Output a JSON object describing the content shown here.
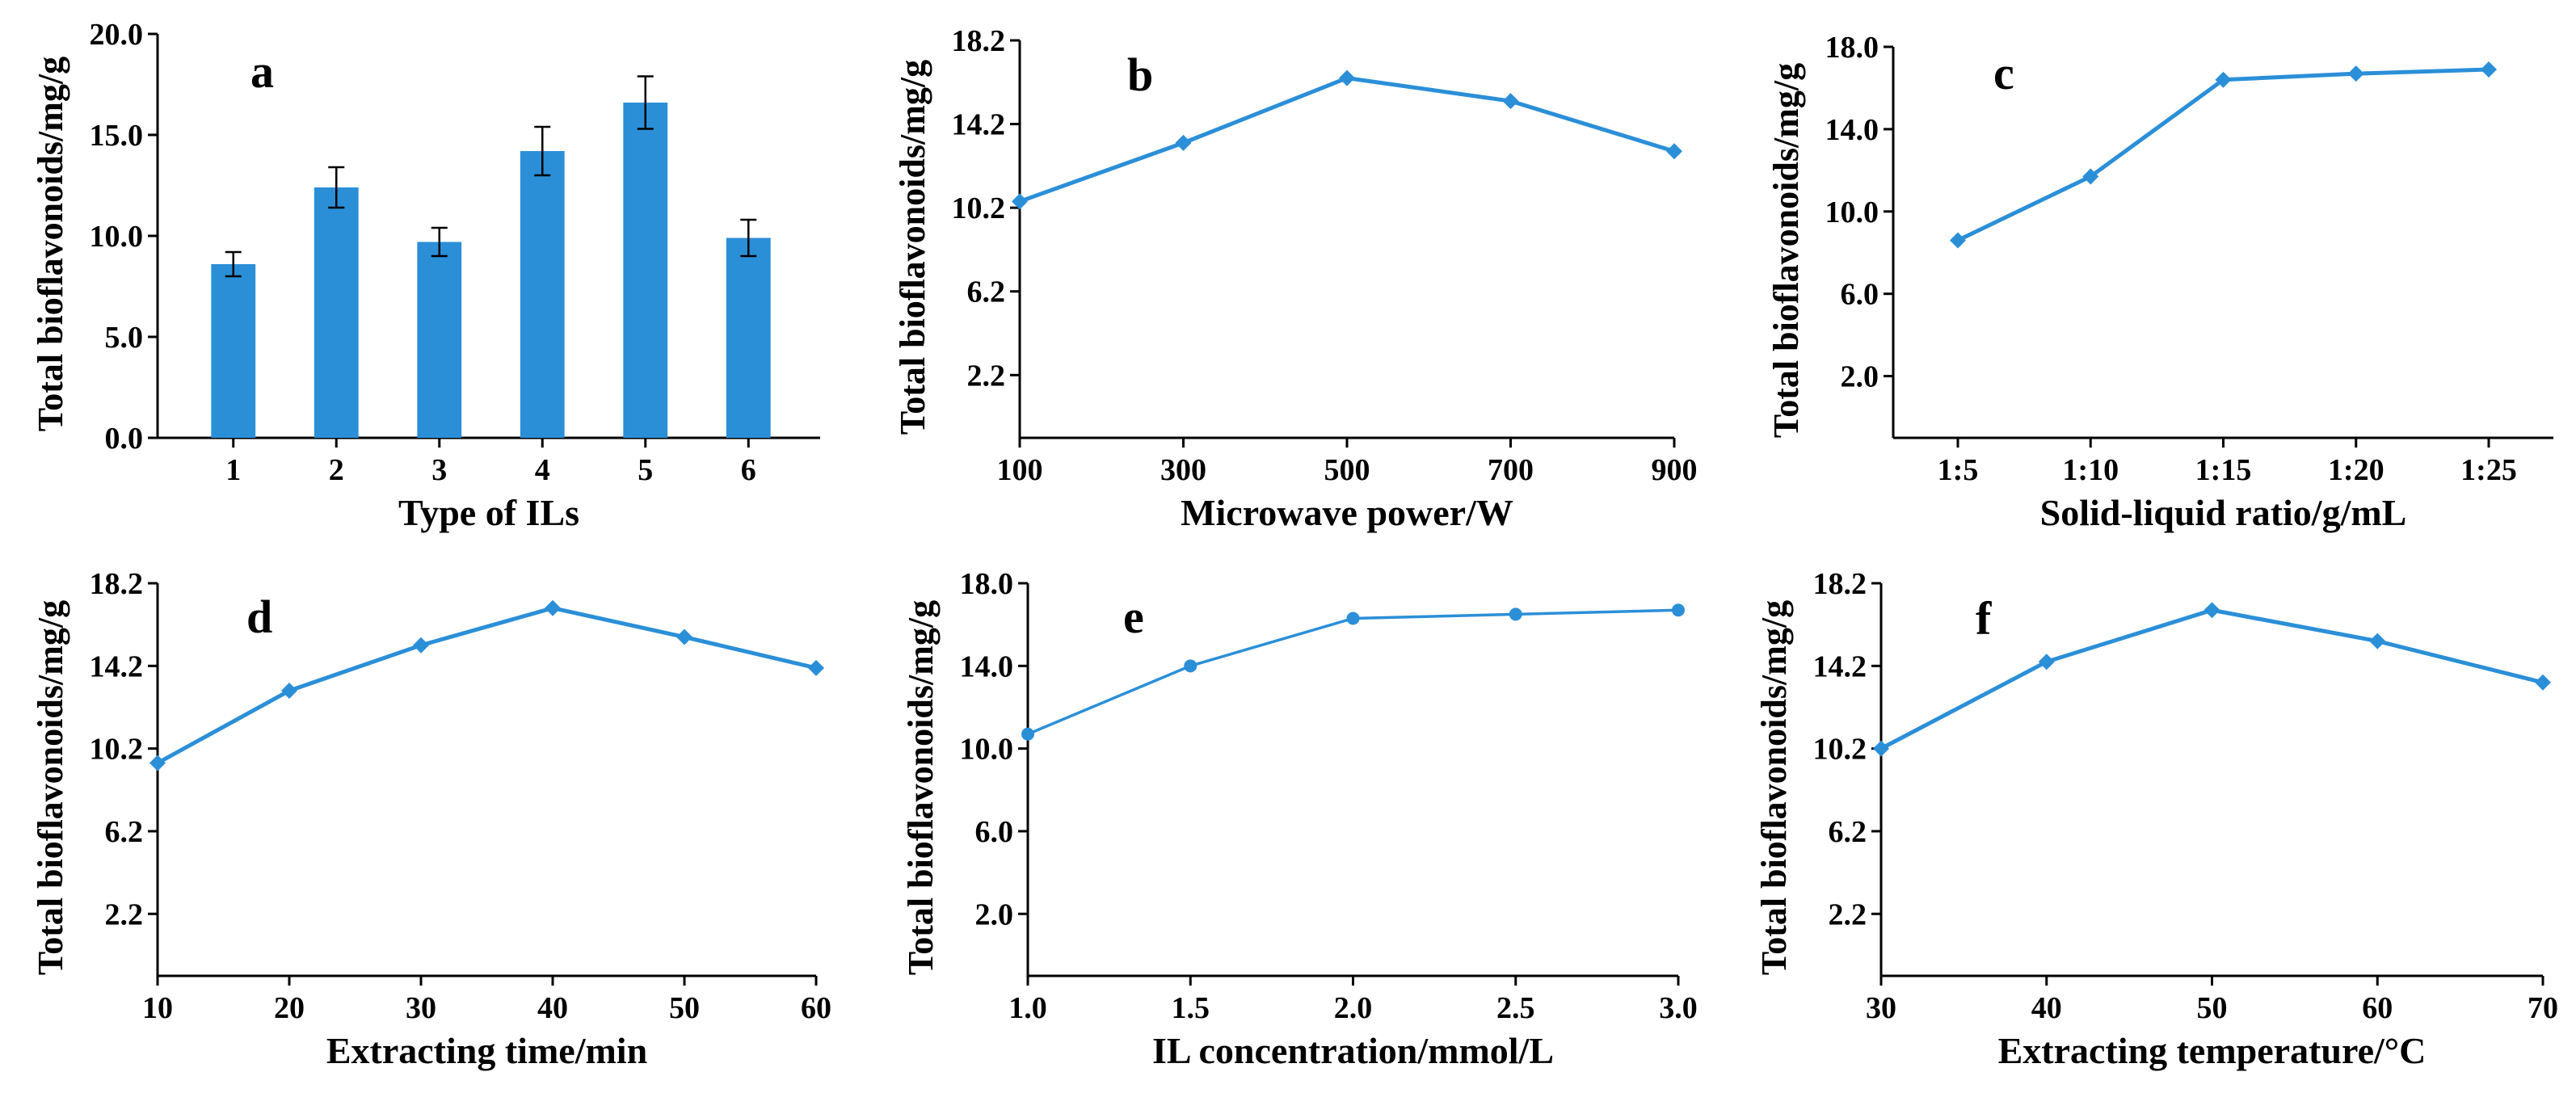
{
  "chart_data": [
    {
      "id": "a",
      "type": "bar",
      "panel_label": "a",
      "xlabel": "Type of ILs",
      "ylabel": "Total bioflavonoids/mg/g",
      "categories": [
        "1",
        "2",
        "3",
        "4",
        "5",
        "6"
      ],
      "values": [
        8.6,
        12.4,
        9.7,
        14.2,
        16.6,
        9.9
      ],
      "errors": [
        0.6,
        1.0,
        0.7,
        1.2,
        1.3,
        0.9
      ],
      "ylim": [
        0,
        20
      ],
      "yticks": [
        "0.0",
        "5.0",
        "10.0",
        "15.0",
        "20.0"
      ],
      "color": "#2b8fd8"
    },
    {
      "id": "b",
      "type": "line",
      "panel_label": "b",
      "marker": "diamond",
      "xlabel": "Microwave power/W",
      "ylabel": "Total bioflavonoids/mg/g",
      "x": [
        100,
        300,
        500,
        700,
        900
      ],
      "values": [
        10.5,
        13.3,
        16.4,
        15.3,
        12.9
      ],
      "xlim": [
        100,
        900
      ],
      "xticks": [
        "100",
        "300",
        "500",
        "700",
        "900"
      ],
      "ylim": [
        -0.8,
        18.2
      ],
      "yticks": [
        "2.2",
        "6.2",
        "10.2",
        "14.2",
        "18.2"
      ],
      "color": "#2b8fd8"
    },
    {
      "id": "c",
      "type": "line",
      "panel_label": "c",
      "marker": "diamond",
      "xlabel": "Solid-liquid ratio/g/mL",
      "ylabel": "Total bioflavonoids/mg/g",
      "categories": [
        "1:5",
        "1:10",
        "1:15",
        "1:20",
        "1:25"
      ],
      "values": [
        8.6,
        11.7,
        16.4,
        16.7,
        16.9
      ],
      "ylim": [
        -1,
        18
      ],
      "yticks": [
        "2.0",
        "6.0",
        "10.0",
        "14.0",
        "18.0"
      ],
      "color": "#2b8fd8"
    },
    {
      "id": "d",
      "type": "line",
      "panel_label": "d",
      "marker": "diamond",
      "xlabel": "Extracting time/min",
      "ylabel": "Total bioflavonoids/mg/g",
      "x": [
        10,
        20,
        30,
        40,
        50,
        60
      ],
      "values": [
        9.5,
        13.0,
        15.2,
        17.0,
        15.6,
        14.1
      ],
      "xlim": [
        10,
        60
      ],
      "xticks": [
        "10",
        "20",
        "30",
        "40",
        "50",
        "60"
      ],
      "ylim": [
        -0.8,
        18.2
      ],
      "yticks": [
        "2.2",
        "6.2",
        "10.2",
        "14.2",
        "18.2"
      ],
      "color": "#2b8fd8"
    },
    {
      "id": "e",
      "type": "line",
      "panel_label": "e",
      "marker": "circle",
      "xlabel": "IL concentration/mmol/L",
      "ylabel": "Total bioflavonoids/mg/g",
      "x": [
        1.0,
        1.5,
        2.0,
        2.5,
        3.0
      ],
      "values": [
        10.7,
        14.0,
        16.3,
        16.5,
        16.7
      ],
      "xlim": [
        1.0,
        3.0
      ],
      "xticks": [
        "1.0",
        "1.5",
        "2.0",
        "2.5",
        "3.0"
      ],
      "ylim": [
        -1,
        18
      ],
      "yticks": [
        "2.0",
        "6.0",
        "10.0",
        "14.0",
        "18.0"
      ],
      "color": "#2b8fd8"
    },
    {
      "id": "f",
      "type": "line",
      "panel_label": "f",
      "marker": "diamond",
      "xlabel": "Extracting temperature/°C",
      "ylabel": "Total bioflavonoids/mg/g",
      "x": [
        30,
        40,
        50,
        60,
        70
      ],
      "values": [
        10.2,
        14.4,
        16.9,
        15.4,
        13.4
      ],
      "xlim": [
        30,
        70
      ],
      "xticks": [
        "30",
        "40",
        "50",
        "60",
        "70"
      ],
      "ylim": [
        -0.8,
        18.2
      ],
      "yticks": [
        "2.2",
        "6.2",
        "10.2",
        "14.2",
        "18.2"
      ],
      "color": "#2b8fd8"
    }
  ]
}
